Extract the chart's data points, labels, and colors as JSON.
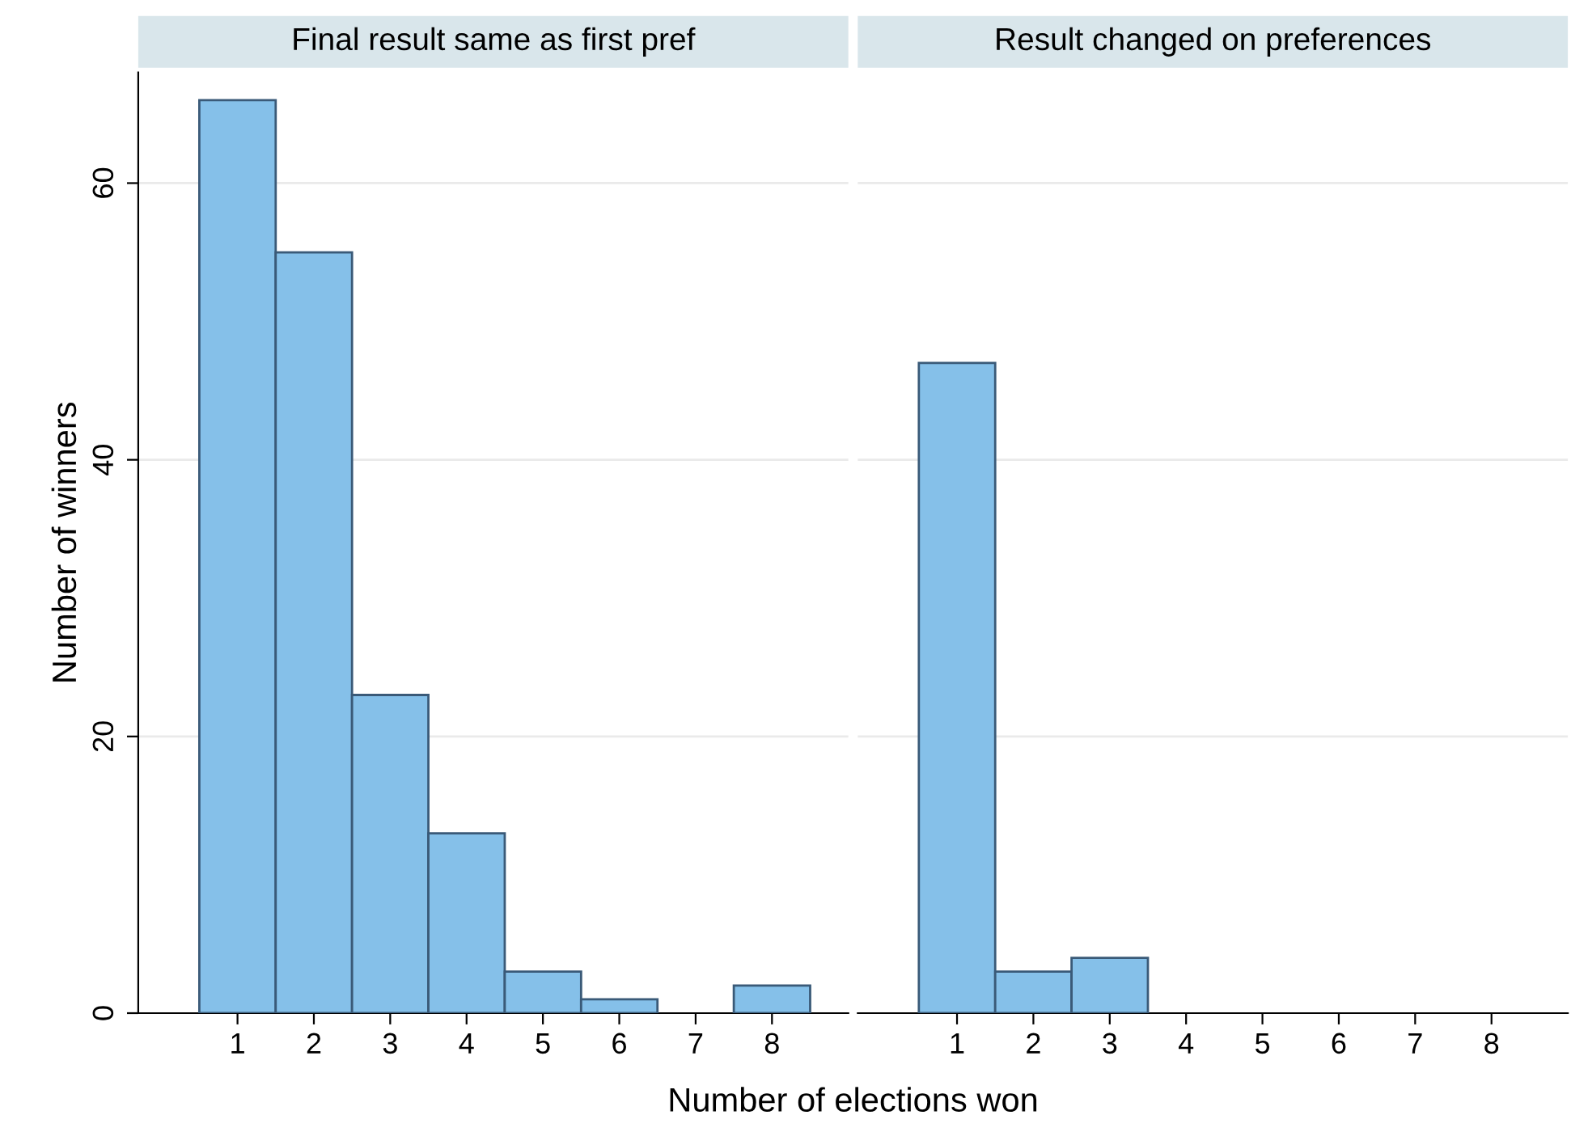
{
  "chart_data": [
    {
      "type": "histogram",
      "title": "Final result same as first pref",
      "xlabel": "Number of elections won",
      "ylabel": "Number of winners",
      "bins": [
        0.5,
        1.5,
        2.5,
        3.5,
        4.5,
        5.5,
        6.5,
        7.5,
        8.5
      ],
      "values": [
        66,
        55,
        23,
        13,
        3,
        1,
        0,
        2
      ],
      "color": "#85c0e9",
      "xlim": [
        -0.3,
        9.0
      ],
      "ylim": [
        0,
        68
      ],
      "xticks": [
        1,
        2,
        3,
        4,
        5,
        6,
        7,
        8
      ],
      "yticks": [
        0,
        20,
        40,
        60
      ],
      "grid": "y"
    },
    {
      "type": "histogram",
      "title": "Result changed on preferences",
      "bins": [
        0.5,
        1.5,
        2.5,
        3.5,
        4.5,
        5.5,
        6.5,
        7.5,
        8.5
      ],
      "values": [
        47,
        3,
        4,
        0,
        0,
        0,
        0,
        0
      ],
      "color": "#85c0e9",
      "xlim": [
        -0.3,
        9.0
      ],
      "xticks": [
        1,
        2,
        3,
        4,
        5,
        6,
        7,
        8
      ],
      "yticks": [
        0,
        20,
        40,
        60
      ],
      "grid": "y",
      "tick_labels": "x"
    }
  ]
}
